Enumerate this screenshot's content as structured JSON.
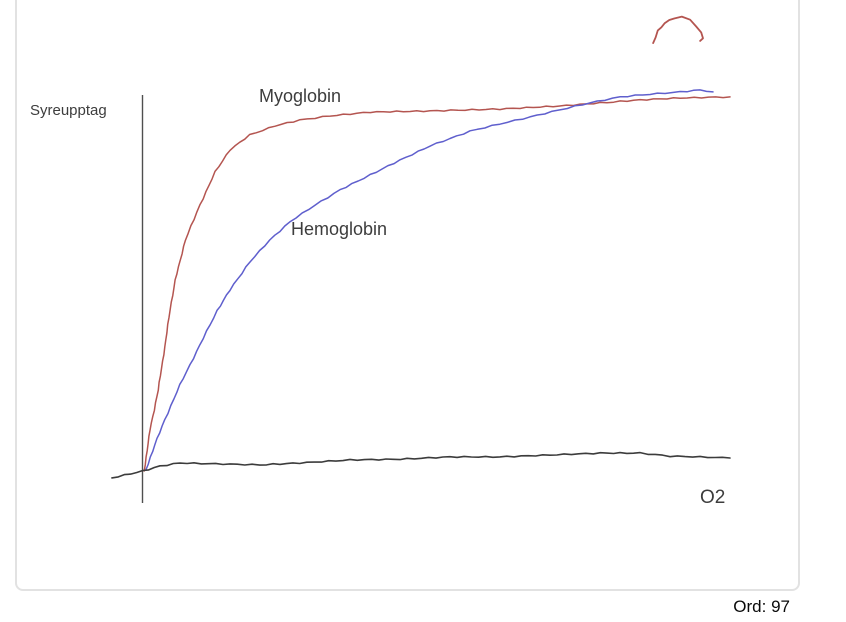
{
  "footer": {
    "word_count": "Ord: 97"
  },
  "chart_data": {
    "type": "line",
    "style": "hand-drawn-sketch",
    "title": "",
    "xlabel": "O2",
    "ylabel": "Syreupptag",
    "x_range": [
      0,
      100
    ],
    "y_range": [
      0,
      100
    ],
    "grid": false,
    "legend": "inline-labels",
    "label_color": "#3d3d3d",
    "axis_color": "#4f4f4f",
    "series": [
      {
        "name": "Myoglobin",
        "color": "#b45550",
        "points": [
          [
            0.2,
            0
          ],
          [
            1.2,
            10.8
          ],
          [
            2.6,
            21.3
          ],
          [
            3.9,
            34.4
          ],
          [
            4.6,
            42.3
          ],
          [
            5.5,
            50.1
          ],
          [
            7.2,
            60.6
          ],
          [
            9.7,
            69.8
          ],
          [
            12.3,
            78.5
          ],
          [
            14.8,
            84.3
          ],
          [
            18.2,
            88.2
          ],
          [
            22.5,
            90.6
          ],
          [
            26.7,
            92.1
          ],
          [
            31.9,
            93.2
          ],
          [
            38.7,
            94.2
          ],
          [
            48.9,
            94.5
          ],
          [
            60.8,
            95.0
          ],
          [
            71.0,
            95.8
          ],
          [
            77.9,
            96.6
          ],
          [
            84.7,
            97.4
          ],
          [
            91.5,
            97.9
          ],
          [
            100,
            98.2
          ]
        ]
      },
      {
        "name": "Hemoglobin",
        "color": "#5f5fcd",
        "points": [
          [
            0.5,
            0.3
          ],
          [
            2.0,
            6.8
          ],
          [
            3.7,
            13.4
          ],
          [
            6.3,
            22.6
          ],
          [
            9.7,
            33.1
          ],
          [
            12.6,
            42.0
          ],
          [
            14.8,
            47.5
          ],
          [
            18.2,
            54.9
          ],
          [
            21.6,
            60.6
          ],
          [
            25.0,
            65.4
          ],
          [
            29.3,
            69.8
          ],
          [
            33.6,
            73.8
          ],
          [
            38.7,
            77.7
          ],
          [
            43.8,
            81.6
          ],
          [
            48.9,
            85.3
          ],
          [
            55.7,
            89.2
          ],
          [
            60.8,
            91.1
          ],
          [
            65.9,
            92.9
          ],
          [
            71.0,
            94.8
          ],
          [
            76.1,
            96.6
          ],
          [
            81.3,
            98.2
          ],
          [
            86.4,
            98.9
          ],
          [
            91.5,
            99.5
          ],
          [
            94.9,
            100
          ],
          [
            97.1,
            99.5
          ]
        ]
      }
    ],
    "strokes": [
      {
        "name": "x-axis-stroke",
        "color": "#3c3c3c",
        "width": 1.6,
        "points": [
          [
            -5.3,
            -1.8
          ],
          [
            0,
            0
          ],
          [
            2.9,
            1.3
          ],
          [
            6.3,
            2.1
          ],
          [
            14.8,
            1.8
          ],
          [
            19.9,
            1.6
          ],
          [
            26.7,
            2.1
          ],
          [
            35.3,
            2.9
          ],
          [
            43.8,
            3.1
          ],
          [
            52.3,
            3.7
          ],
          [
            60.8,
            3.7
          ],
          [
            69.3,
            4.2
          ],
          [
            77.9,
            4.7
          ],
          [
            84.7,
            4.7
          ],
          [
            89.8,
            3.9
          ],
          [
            94.9,
            3.7
          ],
          [
            100,
            3.4
          ]
        ]
      },
      {
        "name": "red-arc-doodle",
        "color": "#b45550",
        "width": 1.8,
        "points": [
          [
            86.9,
            112.3
          ],
          [
            87.7,
            115.5
          ],
          [
            88.9,
            117.6
          ],
          [
            90.5,
            118.9
          ],
          [
            91.8,
            119.2
          ],
          [
            93.2,
            118.4
          ],
          [
            94.2,
            116.8
          ],
          [
            95.1,
            115.0
          ],
          [
            95.4,
            113.6
          ],
          [
            94.9,
            112.9
          ]
        ]
      }
    ]
  }
}
